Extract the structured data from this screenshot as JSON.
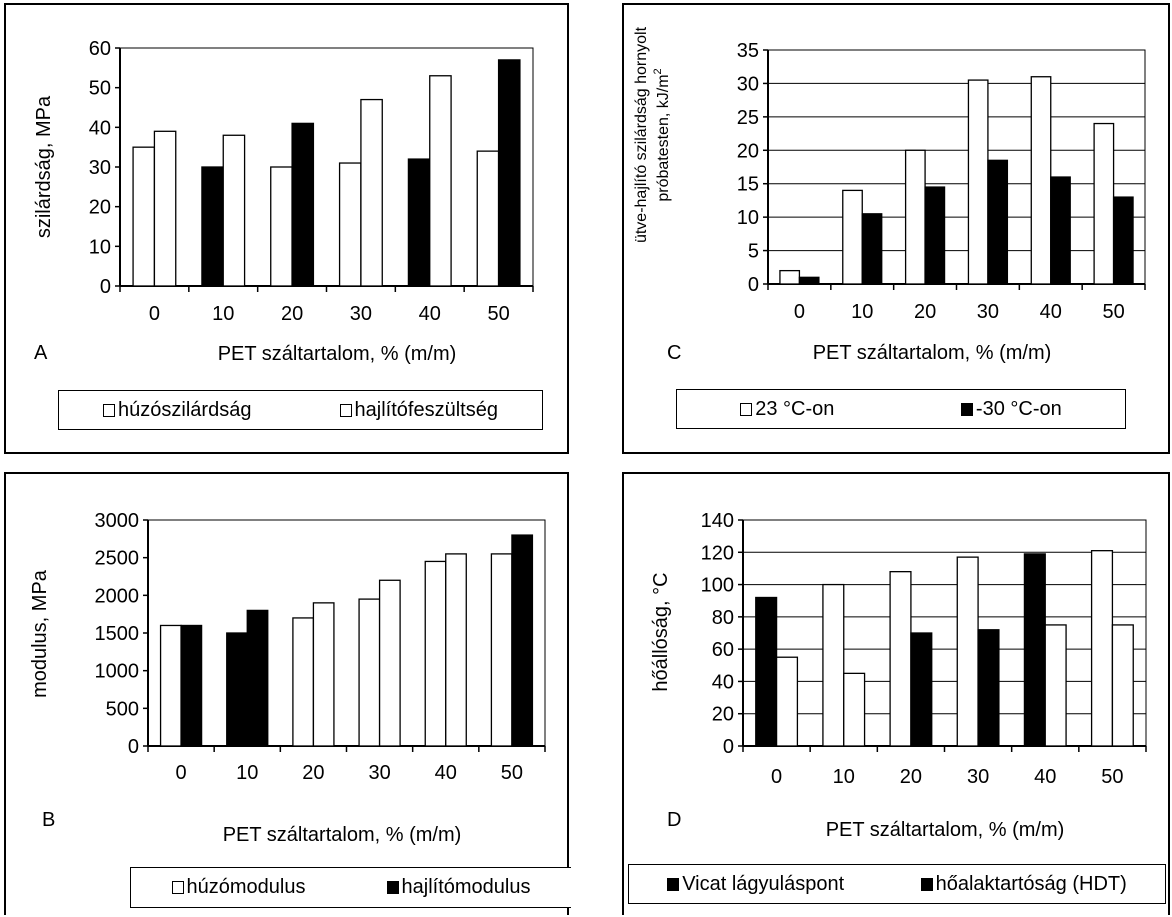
{
  "chart_data": [
    {
      "id": "A",
      "type": "bar",
      "panel_letter": "A",
      "categories": [
        "0",
        "10",
        "20",
        "30",
        "40",
        "50"
      ],
      "series": [
        {
          "name": "húzószilárdság",
          "color": "#ffffff",
          "values": [
            35,
            30,
            30,
            31,
            32,
            34
          ]
        },
        {
          "name": "hajlítófeszültség",
          "color": "#ffffff",
          "values": [
            39,
            38,
            41,
            47,
            53,
            57
          ]
        }
      ],
      "bar_fills": [
        [
          "#ffffff",
          "#ffffff"
        ],
        [
          "#000000",
          "#ffffff"
        ],
        [
          "#ffffff",
          "#000000"
        ],
        [
          "#ffffff",
          "#ffffff"
        ],
        [
          "#000000",
          "#ffffff"
        ],
        [
          "#ffffff",
          "#000000"
        ]
      ],
      "legend_swatch_colors": [
        "#ffffff",
        "#ffffff"
      ],
      "ylabel": "szilárdság, MPa",
      "xlabel": "PET száltartalom, % (m/m)",
      "ylim": [
        0,
        60
      ],
      "yticks": [
        0,
        10,
        20,
        30,
        40,
        50,
        60
      ],
      "grid": false,
      "legend_position": "bottom"
    },
    {
      "id": "B",
      "type": "bar",
      "panel_letter": "B",
      "categories": [
        "0",
        "10",
        "20",
        "30",
        "40",
        "50"
      ],
      "series": [
        {
          "name": "húzómodulus",
          "color": "#ffffff",
          "values": [
            1600,
            1500,
            1700,
            1950,
            2450,
            2550
          ]
        },
        {
          "name": "hajlítómodulus",
          "color": "#000000",
          "values": [
            1600,
            1800,
            1900,
            2200,
            2550,
            2800
          ]
        }
      ],
      "bar_fills": [
        [
          "#ffffff",
          "#000000"
        ],
        [
          "#000000",
          "#000000"
        ],
        [
          "#ffffff",
          "#ffffff"
        ],
        [
          "#ffffff",
          "#ffffff"
        ],
        [
          "#ffffff",
          "#ffffff"
        ],
        [
          "#ffffff",
          "#000000"
        ]
      ],
      "legend_swatch_colors": [
        "#ffffff",
        "#000000"
      ],
      "ylabel": "modulus, MPa",
      "xlabel": "PET száltartalom, % (m/m)",
      "ylim": [
        0,
        3000
      ],
      "yticks": [
        0,
        500,
        1000,
        1500,
        2000,
        2500,
        3000
      ],
      "grid": false,
      "legend_position": "bottom"
    },
    {
      "id": "C",
      "type": "bar",
      "panel_letter": "C",
      "categories": [
        "0",
        "10",
        "20",
        "30",
        "40",
        "50"
      ],
      "series": [
        {
          "name": "23 °C-on",
          "color": "#ffffff",
          "values": [
            2,
            14,
            20,
            30.5,
            31,
            24
          ]
        },
        {
          "name": "-30 °C-on",
          "color": "#000000",
          "values": [
            1,
            10.5,
            14.5,
            18.5,
            16,
            13
          ]
        }
      ],
      "bar_fills": [
        [
          "#ffffff",
          "#000000"
        ],
        [
          "#ffffff",
          "#000000"
        ],
        [
          "#ffffff",
          "#000000"
        ],
        [
          "#ffffff",
          "#000000"
        ],
        [
          "#ffffff",
          "#000000"
        ],
        [
          "#ffffff",
          "#000000"
        ]
      ],
      "legend_swatch_colors": [
        "#ffffff",
        "#000000"
      ],
      "ylabel_lines": [
        "ütve-hajlító szilárdság hornyolt",
        "próbatesten, kJ/m"
      ],
      "ylabel_sup": "2",
      "xlabel": "PET száltartalom, % (m/m)",
      "ylim": [
        0,
        35
      ],
      "yticks": [
        0,
        5,
        10,
        15,
        20,
        25,
        30,
        35
      ],
      "grid": true,
      "legend_position": "bottom"
    },
    {
      "id": "D",
      "type": "bar",
      "panel_letter": "D",
      "categories": [
        "0",
        "10",
        "20",
        "30",
        "40",
        "50"
      ],
      "series": [
        {
          "name": "Vicat lágyuláspont",
          "color": "#000000",
          "values": [
            92,
            100,
            108,
            117,
            119,
            121
          ]
        },
        {
          "name": "hőalaktartóság (HDT)",
          "color": "#000000",
          "values": [
            55,
            45,
            70,
            72,
            75,
            75
          ]
        }
      ],
      "bar_fills": [
        [
          "#000000",
          "#ffffff"
        ],
        [
          "#ffffff",
          "#ffffff"
        ],
        [
          "#ffffff",
          "#000000"
        ],
        [
          "#ffffff",
          "#000000"
        ],
        [
          "#000000",
          "#ffffff"
        ],
        [
          "#ffffff",
          "#ffffff"
        ]
      ],
      "legend_swatch_colors": [
        "#000000",
        "#000000"
      ],
      "ylabel": "hőállóság, °C",
      "xlabel": "PET száltartalom, % (m/m)",
      "ylim": [
        0,
        140
      ],
      "yticks": [
        0,
        20,
        40,
        60,
        80,
        100,
        120,
        140
      ],
      "grid": true,
      "legend_position": "bottom"
    }
  ]
}
